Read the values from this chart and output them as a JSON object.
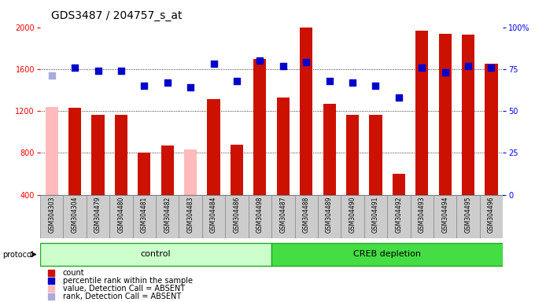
{
  "title": "GDS3487 / 204757_s_at",
  "samples": [
    "GSM304303",
    "GSM304304",
    "GSM304479",
    "GSM304480",
    "GSM304481",
    "GSM304482",
    "GSM304483",
    "GSM304484",
    "GSM304486",
    "GSM304498",
    "GSM304487",
    "GSM304488",
    "GSM304489",
    "GSM304490",
    "GSM304491",
    "GSM304492",
    "GSM304493",
    "GSM304494",
    "GSM304495",
    "GSM304496"
  ],
  "count_values": [
    1240,
    1230,
    1160,
    1160,
    800,
    870,
    830,
    1310,
    880,
    1700,
    1330,
    2000,
    1270,
    1160,
    1160,
    600,
    1970,
    1940,
    1930,
    1650
  ],
  "rank_values": [
    71,
    76,
    74,
    74,
    65,
    67,
    64,
    78,
    68,
    80,
    77,
    79,
    68,
    67,
    65,
    58,
    76,
    73,
    77,
    76
  ],
  "count_absent_indices": [
    0,
    6
  ],
  "rank_absent_indices": [
    0
  ],
  "groups": {
    "control": {
      "label": "control",
      "start": 0,
      "end": 9
    },
    "creb": {
      "label": "CREB depletion",
      "start": 10,
      "end": 19
    }
  },
  "ylim_left": [
    400,
    2000
  ],
  "ylim_right": [
    0,
    100
  ],
  "yticks_left": [
    400,
    800,
    1200,
    1600,
    2000
  ],
  "yticks_right": [
    0,
    25,
    50,
    75,
    100
  ],
  "bar_color_present": "#cc1100",
  "bar_color_absent": "#ffbbbb",
  "dot_color_present": "#0000cc",
  "dot_color_absent": "#aaaadd",
  "group_ctrl_color": "#ccffcc",
  "group_creb_color": "#44dd44",
  "group_border": "#22aa22",
  "bg_color": "#ffffff",
  "label_bg": "#cccccc",
  "bar_width": 0.55,
  "dot_size": 40,
  "tick_fontsize": 7,
  "sample_fontsize": 5.5,
  "legend_fontsize": 7,
  "title_fontsize": 10
}
